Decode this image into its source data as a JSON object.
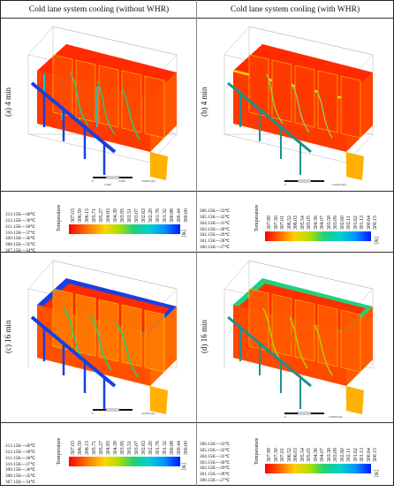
{
  "columns": {
    "left": "Cold lane system cooling (without WHR)",
    "right": "Cold lane system cooling (with WHR)"
  },
  "panels": {
    "a": "(a) 4 min",
    "b": "(b) 4 min",
    "c": "(c) 16 min",
    "d": "(d) 16 min"
  },
  "legend_title": "Temperature",
  "legend_unit": "[K]",
  "left_ticks": [
    "307.03",
    "306.59",
    "306.15",
    "305.71",
    "305.27",
    "304.83",
    "304.39",
    "303.95",
    "303.51",
    "303.07",
    "302.63",
    "302.20",
    "301.76",
    "301.32",
    "300.88",
    "300.44",
    "300.00"
  ],
  "right_ticks": [
    "307.99",
    "307.50",
    "307.01",
    "306.52",
    "306.03",
    "305.54",
    "305.05",
    "304.56",
    "304.07",
    "303.58",
    "303.09",
    "302.60",
    "302.11",
    "301.62",
    "301.13",
    "300.64",
    "300.15"
  ],
  "left_conversion": [
    "313.15K---40℃",
    "312.15K---39℃",
    "311.15K---38℃",
    "310.15K---37℃",
    "309.15K---36℃",
    "308.15K---35℃",
    "307.15K---34℃"
  ],
  "right_conversion": [
    "306.15K---33℃",
    "305.15K---32℃",
    "304.15K---31℃",
    "303.15K---30℃",
    "302.15K---29℃",
    "301.15K---28℃",
    "300.15K---27℃"
  ],
  "scale_labels": [
    "0",
    "5.000",
    "10.000 (m)",
    "2.500",
    "7.500"
  ],
  "colors": {
    "hot": "#ff1a00",
    "cool_pipe": "#1a3fe0",
    "warm_pipe": "#1f8f8f",
    "frame": "#9a9a9a"
  }
}
